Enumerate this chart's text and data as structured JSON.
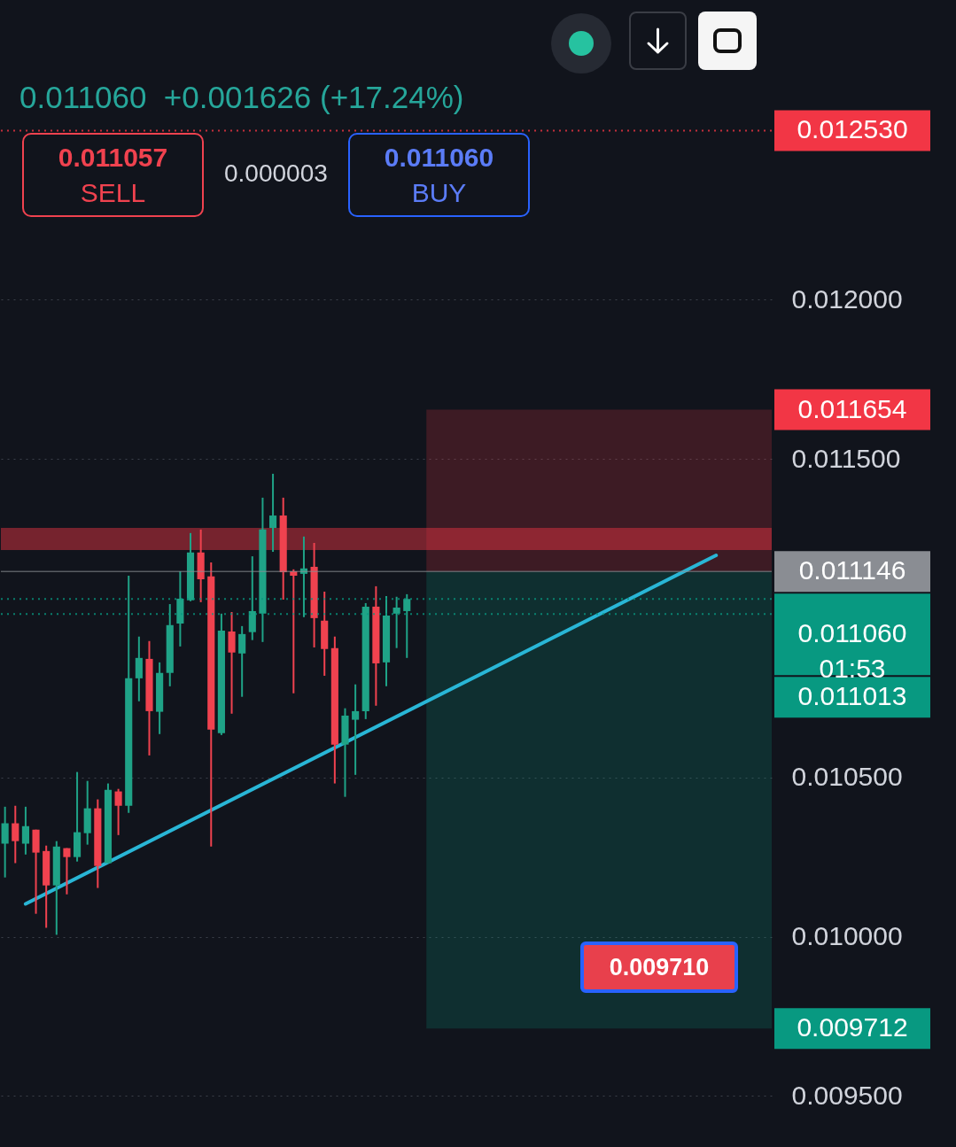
{
  "chart_data": {
    "type": "candlestick",
    "subtitle": "0.011060  +0.001626 (+17.24%)",
    "categories": [
      null,
      null,
      null,
      null,
      null,
      null,
      null,
      null,
      null,
      null,
      null,
      null,
      null,
      null,
      null,
      null,
      null,
      null,
      null,
      null,
      null,
      null,
      null,
      null,
      null,
      null,
      null,
      null,
      null,
      null,
      null,
      null,
      null,
      null,
      null,
      null,
      null,
      null,
      null,
      null,
      null,
      null,
      null,
      null,
      null,
      null,
      null,
      null,
      null,
      null,
      null,
      null,
      null,
      null,
      null,
      null,
      null,
      null,
      null,
      null,
      null,
      null,
      null,
      null,
      null,
      null,
      null,
      null,
      null,
      null,
      null,
      null,
      null,
      null,
      null
    ],
    "ohlc": [
      [
        0.010292,
        0.010408,
        0.010186,
        0.010356
      ],
      [
        0.010356,
        0.010411,
        0.010231,
        0.0103
      ],
      [
        0.010292,
        0.010408,
        0.010258,
        0.010347
      ],
      [
        0.010336,
        0.010336,
        0.010072,
        0.010264
      ],
      [
        0.010269,
        0.010286,
        0.010028,
        0.010161
      ],
      [
        0.010161,
        0.0103,
        0.010006,
        0.010283
      ],
      [
        0.010278,
        0.010278,
        0.010133,
        0.01025
      ],
      [
        0.01025,
        0.010517,
        0.010236,
        0.010328
      ],
      [
        0.010325,
        0.010489,
        0.010289,
        0.010403
      ],
      [
        0.010403,
        0.010431,
        0.010153,
        0.010222
      ],
      [
        0.010231,
        0.010481,
        0.010231,
        0.010461
      ],
      [
        0.010456,
        0.010464,
        0.010319,
        0.010411
      ],
      [
        0.010411,
        0.011133,
        0.010389,
        0.010811
      ],
      [
        0.010811,
        0.010942,
        0.010739,
        0.010875
      ],
      [
        0.010872,
        0.010928,
        0.010569,
        0.010708
      ],
      [
        0.010706,
        0.010861,
        0.010636,
        0.010828
      ],
      [
        0.010828,
        0.011044,
        0.010786,
        0.010978
      ],
      [
        0.010983,
        0.011147,
        0.010911,
        0.011061
      ],
      [
        0.011056,
        0.011267,
        0.011053,
        0.011206
      ],
      [
        0.011206,
        0.011278,
        0.01105,
        0.011122
      ],
      [
        0.011131,
        0.011175,
        0.010283,
        0.01065
      ],
      [
        0.010639,
        0.011014,
        0.010633,
        0.010961
      ],
      [
        0.010958,
        0.011019,
        0.0107,
        0.010892
      ],
      [
        0.010889,
        0.010975,
        0.010753,
        0.01095
      ],
      [
        0.010956,
        0.011194,
        0.010931,
        0.011022
      ],
      [
        0.011014,
        0.011378,
        0.010925,
        0.011278
      ],
      [
        0.011283,
        0.011453,
        0.011208,
        0.011322
      ],
      [
        0.011322,
        0.011378,
        0.011058,
        0.011144
      ],
      [
        0.011147,
        0.011153,
        0.010764,
        0.011133
      ],
      [
        0.011139,
        0.011256,
        0.011003,
        0.011156
      ],
      [
        0.011161,
        0.011236,
        0.010908,
        0.011
      ],
      [
        0.010992,
        0.011083,
        0.010819,
        0.010903
      ],
      [
        0.010906,
        0.010942,
        0.010481,
        0.010603
      ],
      [
        0.010603,
        0.010717,
        0.010439,
        0.010694
      ],
      [
        0.010681,
        0.010792,
        0.010508,
        0.010708
      ],
      [
        0.010708,
        0.011047,
        0.010683,
        0.011036
      ],
      [
        0.011036,
        0.0111,
        0.010725,
        0.010858
      ],
      [
        0.010861,
        0.011069,
        0.010786,
        0.011008
      ],
      [
        0.011014,
        0.011067,
        0.010906,
        0.011033
      ],
      [
        0.011022,
        0.011075,
        0.010875,
        0.01106
      ],
      null,
      null,
      null,
      null,
      null,
      null,
      null,
      null,
      null,
      null,
      null,
      null,
      null,
      null,
      null,
      null,
      null,
      null,
      null,
      null,
      null,
      null,
      null,
      null,
      null,
      null,
      null,
      null,
      null,
      null,
      null,
      null,
      null,
      null,
      null
    ],
    "series": [
      {
        "type": "line",
        "color": "#29b6d6",
        "values": [
          null,
          null,
          0.010103,
          null,
          null,
          null,
          null,
          null,
          null,
          null,
          null,
          null,
          null,
          null,
          null,
          null,
          null,
          null,
          null,
          null,
          null,
          null,
          null,
          null,
          null,
          null,
          null,
          null,
          null,
          null,
          null,
          null,
          null,
          null,
          null,
          null,
          null,
          null,
          null,
          null,
          null,
          null,
          null,
          null,
          null,
          null,
          null,
          null,
          null,
          null,
          null,
          null,
          null,
          null,
          null,
          null,
          null,
          null,
          null,
          null,
          null,
          null,
          null,
          null,
          null,
          null,
          null,
          null,
          null,
          0.011197,
          null,
          null,
          null,
          null,
          null
        ]
      }
    ],
    "ylim": [
      0.00934,
      0.01294
    ],
    "yticks": [
      {
        "value": 0.0095,
        "label": "0.009500"
      },
      {
        "value": 0.01,
        "label": "0.010000"
      },
      {
        "value": 0.0105,
        "label": "0.010500"
      },
      {
        "value": 0.0115,
        "label": "0.011500"
      },
      {
        "value": 0.012,
        "label": "0.012000"
      }
    ],
    "grid": "y",
    "tick_labels": "y",
    "ref_lines": [
      {
        "axis": "y",
        "value": 0.01253,
        "label": "0.012530",
        "color": "#f23645",
        "line_style": "dotted"
      },
      {
        "axis": "y",
        "value": 0.011146,
        "label": "0.011146",
        "color": "#8a8d93",
        "line_style": "solid"
      },
      {
        "axis": "y",
        "value": 0.01106,
        "label": "0.011060\n01:53",
        "color": "#089981",
        "line_style": "dotted"
      },
      {
        "axis": "y",
        "value": 0.011013,
        "label": "0.011013",
        "color": "#089981",
        "line_style": "dotted"
      }
    ],
    "bands": [
      {
        "axis": "y",
        "from": 0.011146,
        "to": 0.011654,
        "label": "0.011654",
        "color": "#f23645"
      },
      {
        "axis": "y",
        "from": 0.011146,
        "to": 0.009712,
        "label": "0.009712",
        "color": "#089981"
      },
      {
        "axis": "y",
        "from": 0.011214,
        "to": 0.011283,
        "color": "#f23645"
      }
    ],
    "annotations": [
      "0.011057",
      "SELL",
      "0.000003",
      "0.011060",
      "BUY",
      "0.009710"
    ]
  }
}
